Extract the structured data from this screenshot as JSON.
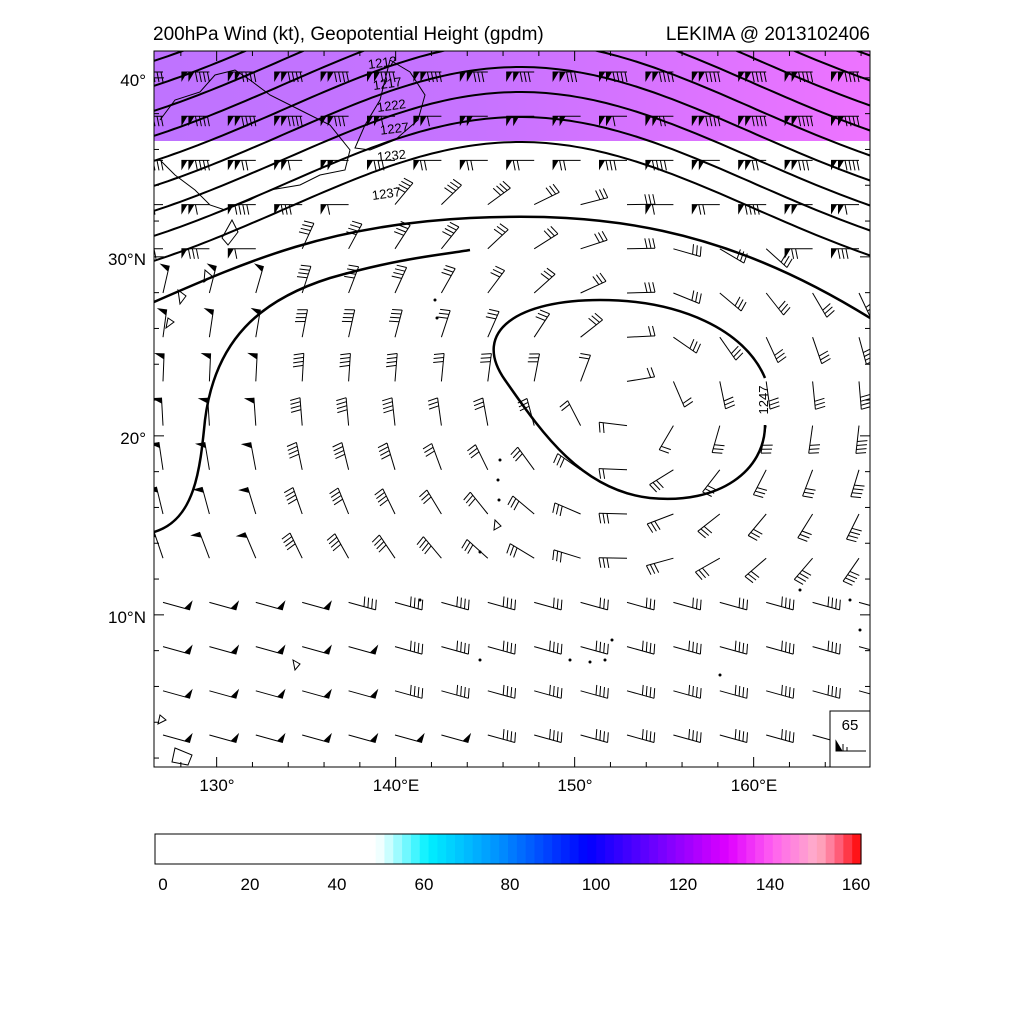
{
  "header": {
    "left_title": "200hPa Wind (kt), Geopotential Height (gpdm)",
    "right_title": "LEKIMA @ 2013102406"
  },
  "map": {
    "lon_range": [
      126.5,
      166.5
    ],
    "lat_range": [
      1.5,
      41.5
    ],
    "lat_ticks": [
      {
        "value": 40,
        "label": "40°"
      },
      {
        "value": 30,
        "label": "30°N"
      },
      {
        "value": 20,
        "label": "20°"
      },
      {
        "value": 10,
        "label": "10°N"
      }
    ],
    "lon_ticks": [
      {
        "value": 130,
        "label": "130°"
      },
      {
        "value": 140,
        "label": "140°E"
      },
      {
        "value": 150,
        "label": "150°"
      },
      {
        "value": 160,
        "label": "160°E"
      }
    ],
    "contour_labels": [
      "1212",
      "1217",
      "1222",
      "1227",
      "1232",
      "1237",
      "1247"
    ],
    "reference_vector": {
      "value": "65",
      "units": "kt"
    }
  },
  "colorbar": {
    "ticks": [
      "0",
      "20",
      "40",
      "60",
      "80",
      "100",
      "120",
      "140",
      "160"
    ],
    "range": [
      0,
      160
    ],
    "colors": {
      "white": "#ffffff",
      "cyan": "#00ffff",
      "blue": "#0000ff",
      "purple": "#8000ff",
      "magenta": "#ff00ff",
      "pink": "#ffb0d0",
      "red": "#ff0000"
    }
  }
}
